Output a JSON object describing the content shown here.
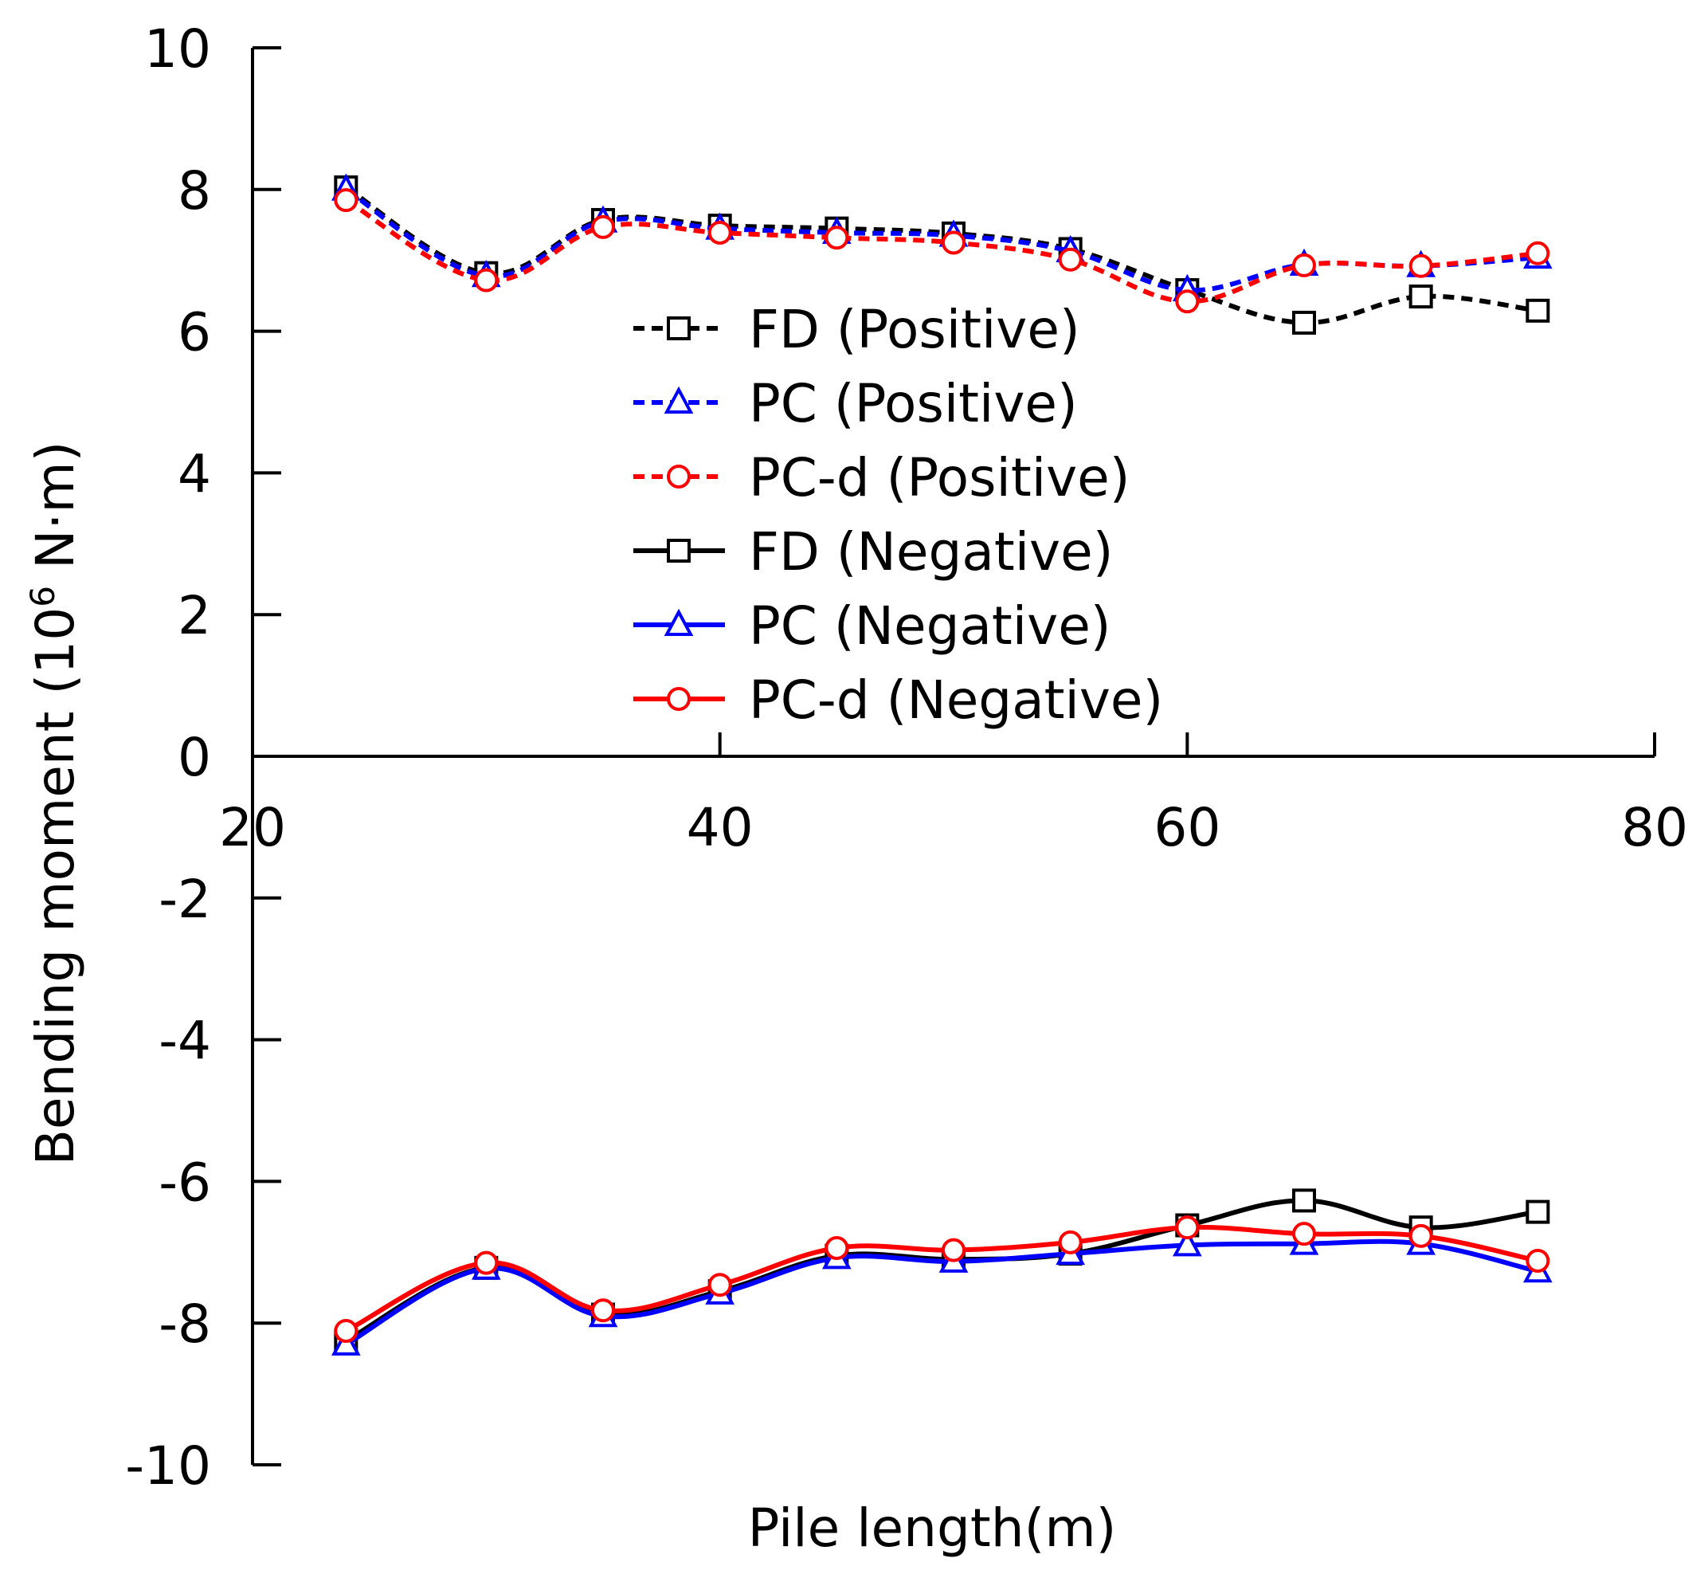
{
  "chart_data": {
    "type": "line",
    "title": "",
    "xlabel": "Pile length(m)",
    "ylabel_main": "Bending moment (10",
    "ylabel_sup": "6",
    "ylabel_unit": " N·m)",
    "xlim": [
      20,
      80
    ],
    "ylim": [
      -10,
      10
    ],
    "x_ticks": [
      20,
      40,
      60,
      80
    ],
    "y_ticks": [
      10,
      8,
      6,
      4,
      2,
      0,
      -2,
      -4,
      -6,
      -8,
      -10
    ],
    "legend_position": "center",
    "x": [
      24,
      30,
      35,
      40,
      45,
      50,
      55,
      60,
      65,
      70,
      75
    ],
    "series": [
      {
        "name": "FD (Positive)",
        "color": "#000000",
        "dash": true,
        "marker": "square",
        "values": [
          8.03,
          6.82,
          7.57,
          7.49,
          7.45,
          7.38,
          7.16,
          6.58,
          6.12,
          6.49,
          6.29
        ]
      },
      {
        "name": "PC (Positive)",
        "color": "#0000ff",
        "dash": true,
        "marker": "triangle",
        "values": [
          8.0,
          6.78,
          7.55,
          7.45,
          7.39,
          7.35,
          7.13,
          6.58,
          6.94,
          6.92,
          7.04
        ]
      },
      {
        "name": "PC-d (Positive)",
        "color": "#ff0000",
        "dash": true,
        "marker": "circle",
        "values": [
          7.85,
          6.72,
          7.47,
          7.39,
          7.32,
          7.25,
          7.01,
          6.42,
          6.93,
          6.92,
          7.1
        ]
      },
      {
        "name": "FD (Negative)",
        "color": "#000000",
        "dash": false,
        "marker": "square",
        "values": [
          -8.25,
          -7.22,
          -7.88,
          -7.55,
          -7.05,
          -7.1,
          -7.02,
          -6.62,
          -6.27,
          -6.65,
          -6.43
        ]
      },
      {
        "name": "PC (Negative)",
        "color": "#0000ff",
        "dash": false,
        "marker": "triangle",
        "values": [
          -8.3,
          -7.23,
          -7.9,
          -7.58,
          -7.08,
          -7.13,
          -7.02,
          -6.9,
          -6.88,
          -6.88,
          -7.27
        ]
      },
      {
        "name": "PC-d (Negative)",
        "color": "#ff0000",
        "dash": false,
        "marker": "circle",
        "values": [
          -8.11,
          -7.15,
          -7.82,
          -7.46,
          -6.94,
          -6.97,
          -6.86,
          -6.65,
          -6.74,
          -6.77,
          -7.12
        ]
      }
    ]
  }
}
